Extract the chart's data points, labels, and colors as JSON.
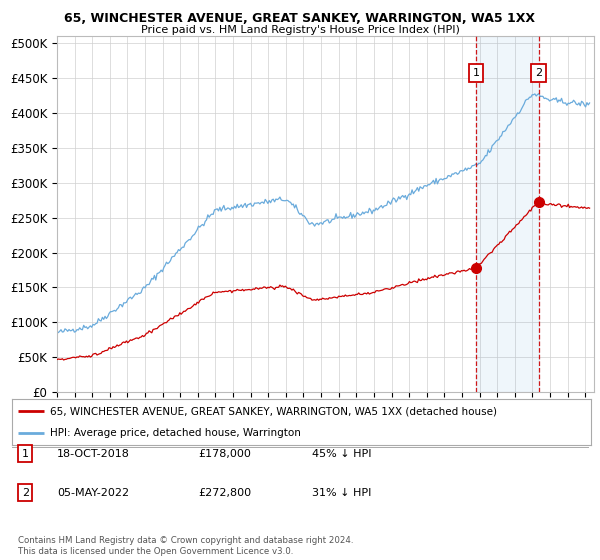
{
  "title1": "65, WINCHESTER AVENUE, GREAT SANKEY, WARRINGTON, WA5 1XX",
  "title2": "Price paid vs. HM Land Registry's House Price Index (HPI)",
  "ylabel_ticks": [
    "£0",
    "£50K",
    "£100K",
    "£150K",
    "£200K",
    "£250K",
    "£300K",
    "£350K",
    "£400K",
    "£450K",
    "£500K"
  ],
  "ytick_vals": [
    0,
    50000,
    100000,
    150000,
    200000,
    250000,
    300000,
    350000,
    400000,
    450000,
    500000
  ],
  "xlim_start": 1995.0,
  "xlim_end": 2025.5,
  "ylim": [
    0,
    510000
  ],
  "legend_line1": "65, WINCHESTER AVENUE, GREAT SANKEY, WARRINGTON, WA5 1XX (detached house)",
  "legend_line2": "HPI: Average price, detached house, Warrington",
  "sale1_date": "18-OCT-2018",
  "sale1_price": 178000,
  "sale1_pct": "45% ↓ HPI",
  "sale1_x": 2018.8,
  "sale2_date": "05-MAY-2022",
  "sale2_price": 272800,
  "sale2_pct": "31% ↓ HPI",
  "sale2_x": 2022.35,
  "hpi_color": "#6aabdc",
  "sold_color": "#cc0000",
  "vline_color": "#cc0000",
  "background_color": "#ffffff",
  "footnote": "Contains HM Land Registry data © Crown copyright and database right 2024.\nThis data is licensed under the Open Government Licence v3.0."
}
